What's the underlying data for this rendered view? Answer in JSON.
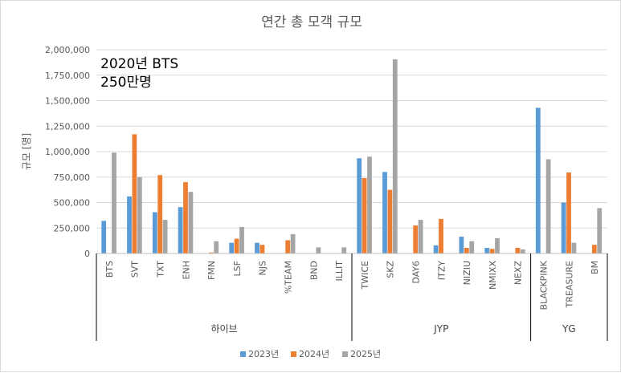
{
  "chart_data": {
    "type": "bar",
    "title": "연간 총 모객 규모",
    "ylabel": "규모 [명]",
    "ylim": [
      0,
      2000000
    ],
    "yticks": [
      0,
      250000,
      500000,
      750000,
      1000000,
      1250000,
      1500000,
      1750000,
      2000000
    ],
    "ytick_labels": [
      "0",
      "250,000",
      "500,000",
      "750,000",
      "1,000,000",
      "1,250,000",
      "1,500,000",
      "1,750,000",
      "2,000,000"
    ],
    "grid": true,
    "legend_position": "bottom",
    "categories": [
      "BTS",
      "SVT",
      "TXT",
      "ENH",
      "FMN",
      "LSF",
      "NJS",
      "%TEAM",
      "BND",
      "ILLIT",
      "TWICE",
      "SKZ",
      "DAY6",
      "ITZY",
      "NIZIU",
      "NMIXX",
      "NEXZ",
      "BLACKPINK",
      "TREASURE",
      "BM"
    ],
    "groups": [
      {
        "label": "하이브",
        "start": 0,
        "end": 9
      },
      {
        "label": "JYP",
        "start": 10,
        "end": 16
      },
      {
        "label": "YG",
        "start": 17,
        "end": 19
      }
    ],
    "series": [
      {
        "name": "2023년",
        "color": "#5b9bd5",
        "values": [
          320000,
          560000,
          405000,
          455000,
          0,
          105000,
          105000,
          0,
          0,
          0,
          935000,
          800000,
          0,
          80000,
          165000,
          55000,
          0,
          1430000,
          500000,
          0
        ]
      },
      {
        "name": "2024년",
        "color": "#ed7d31",
        "values": [
          0,
          1170000,
          770000,
          700000,
          10000,
          145000,
          85000,
          130000,
          0,
          0,
          740000,
          625000,
          275000,
          340000,
          55000,
          45000,
          55000,
          0,
          795000,
          85000
        ]
      },
      {
        "name": "2025년",
        "color": "#a5a5a5",
        "values": [
          990000,
          750000,
          330000,
          605000,
          120000,
          260000,
          0,
          190000,
          60000,
          60000,
          950000,
          1905000,
          330000,
          0,
          120000,
          150000,
          40000,
          925000,
          105000,
          445000
        ]
      }
    ],
    "annotation": [
      "2020년 BTS",
      "250만명"
    ]
  }
}
